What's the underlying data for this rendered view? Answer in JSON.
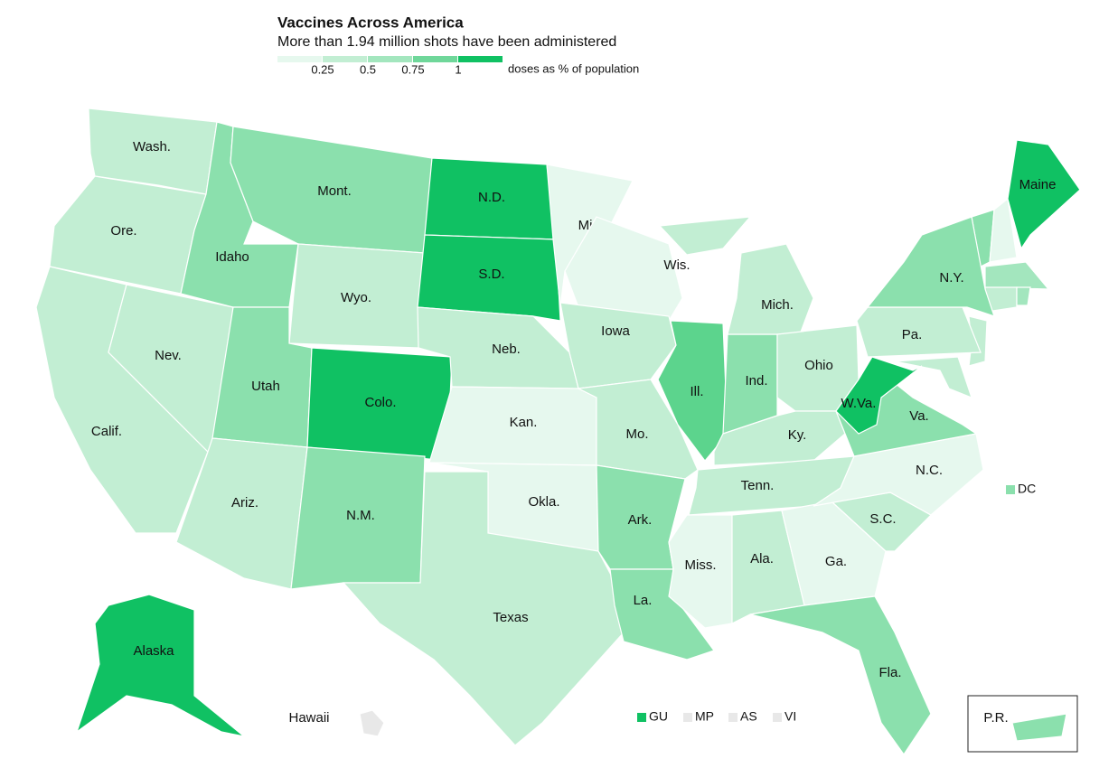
{
  "title": "Vaccines Across America",
  "subtitle": "More than 1.94 million shots have been administered",
  "legend": {
    "colors": [
      "#e6f8ee",
      "#c2eed3",
      "#a3e6be",
      "#6fd79a",
      "#10c163"
    ],
    "ticks": [
      0.25,
      0.5,
      0.75,
      1
    ],
    "label": "doses as % of population"
  },
  "states": [
    {
      "label": "Wash.",
      "color": "#c2eed3"
    },
    {
      "label": "Ore.",
      "color": "#c2eed3"
    },
    {
      "label": "Calif.",
      "color": "#c2eed3"
    },
    {
      "label": "Nev.",
      "color": "#c2eed3"
    },
    {
      "label": "Idaho",
      "color": "#8be0ad"
    },
    {
      "label": "Mont.",
      "color": "#8be0ad"
    },
    {
      "label": "Wyo.",
      "color": "#c2eed3"
    },
    {
      "label": "Utah",
      "color": "#8be0ad"
    },
    {
      "label": "Colo.",
      "color": "#10c163"
    },
    {
      "label": "Ariz.",
      "color": "#c2eed3"
    },
    {
      "label": "N.M.",
      "color": "#8be0ad"
    },
    {
      "label": "N.D.",
      "color": "#10c163"
    },
    {
      "label": "S.D.",
      "color": "#10c163"
    },
    {
      "label": "Neb.",
      "color": "#c2eed3"
    },
    {
      "label": "Kan.",
      "color": "#e6f8ee"
    },
    {
      "label": "Okla.",
      "color": "#e6f8ee"
    },
    {
      "label": "Texas",
      "color": "#c2eed3"
    },
    {
      "label": "Minn.",
      "color": "#e6f8ee"
    },
    {
      "label": "Wis.",
      "color": "#e6f8ee"
    },
    {
      "label": "Iowa",
      "color": "#c2eed3"
    },
    {
      "label": "Mo.",
      "color": "#c2eed3"
    },
    {
      "label": "Ark.",
      "color": "#8be0ad"
    },
    {
      "label": "La.",
      "color": "#8be0ad"
    },
    {
      "label": "Ill.",
      "color": "#5cd48d"
    },
    {
      "label": "Ind.",
      "color": "#8be0ad"
    },
    {
      "label": "Mich.",
      "color": "#c2eed3"
    },
    {
      "label": "Ohio",
      "color": "#c2eed3"
    },
    {
      "label": "Ky.",
      "color": "#c2eed3"
    },
    {
      "label": "Tenn.",
      "color": "#c2eed3"
    },
    {
      "label": "Miss.",
      "color": "#e6f8ee"
    },
    {
      "label": "Ala.",
      "color": "#c2eed3"
    },
    {
      "label": "Ga.",
      "color": "#e6f8ee"
    },
    {
      "label": "Fla.",
      "color": "#8be0ad"
    },
    {
      "label": "S.C.",
      "color": "#c2eed3"
    },
    {
      "label": "N.C.",
      "color": "#e6f8ee"
    },
    {
      "label": "Va.",
      "color": "#8be0ad"
    },
    {
      "label": "W.Va.",
      "color": "#10c163"
    },
    {
      "label": "Pa.",
      "color": "#c2eed3"
    },
    {
      "label": "N.Y.",
      "color": "#8be0ad"
    },
    {
      "label": "Maine",
      "color": "#10c163"
    },
    {
      "label": "Alaska",
      "color": "#10c163"
    },
    {
      "label": "Hawaii",
      "color": "#e8e8e8"
    },
    {
      "label": "P.R.",
      "color": "#8be0ad"
    }
  ],
  "territories": [
    {
      "label": "DC",
      "color": "#8be0ad"
    },
    {
      "label": "GU",
      "color": "#10c163"
    },
    {
      "label": "MP",
      "color": "#e8e8e8"
    },
    {
      "label": "AS",
      "color": "#e8e8e8"
    },
    {
      "label": "VI",
      "color": "#e8e8e8"
    }
  ]
}
